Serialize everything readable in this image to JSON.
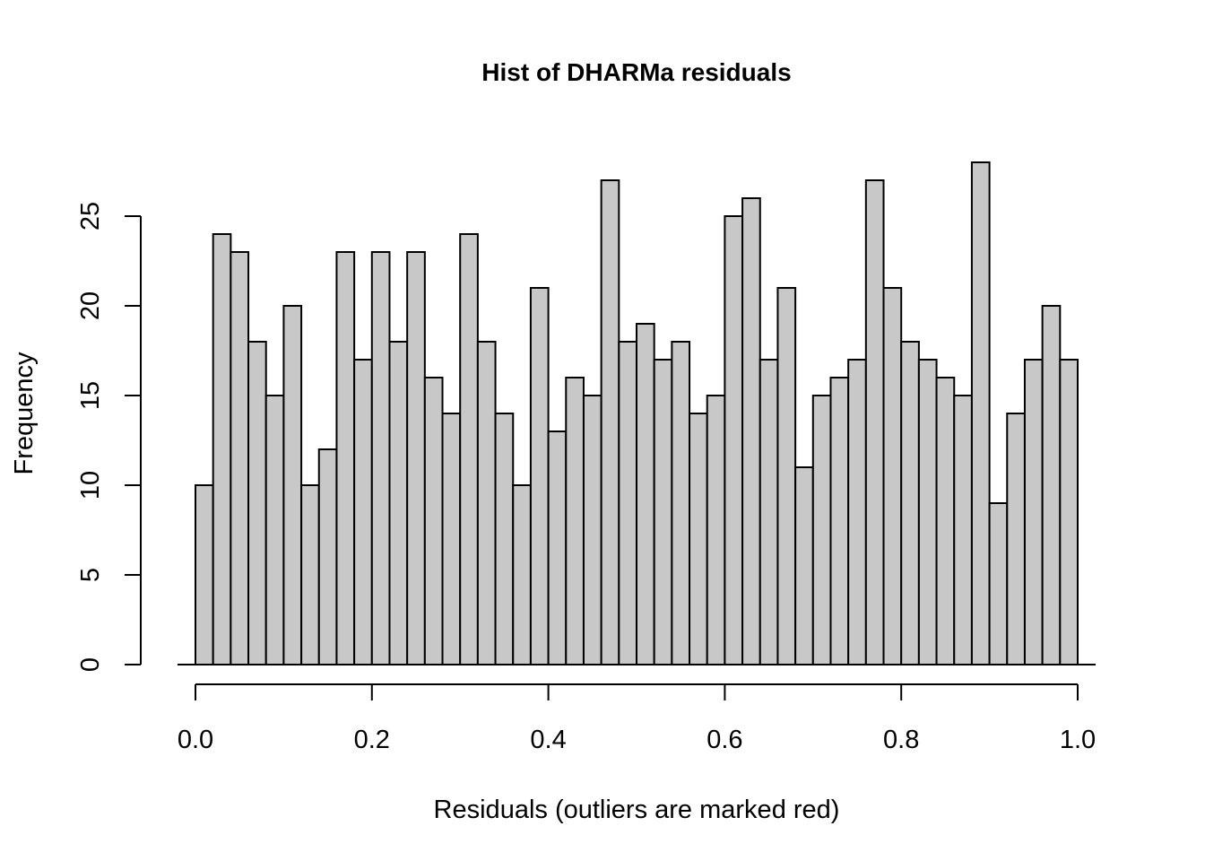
{
  "chart_data": {
    "type": "bar",
    "title": "Hist of DHARMa residuals",
    "xlabel": "Residuals (outliers are marked red)",
    "ylabel": "Frequency",
    "xlim": [
      0,
      1
    ],
    "ylim": [
      0,
      28
    ],
    "bin_width": 0.02,
    "x_ticks": [
      {
        "value": 0.0,
        "label": "0.0"
      },
      {
        "value": 0.2,
        "label": "0.2"
      },
      {
        "value": 0.4,
        "label": "0.4"
      },
      {
        "value": 0.6,
        "label": "0.6"
      },
      {
        "value": 0.8,
        "label": "0.8"
      },
      {
        "value": 1.0,
        "label": "1.0"
      }
    ],
    "y_ticks": [
      {
        "value": 0,
        "label": "0"
      },
      {
        "value": 5,
        "label": "5"
      },
      {
        "value": 10,
        "label": "10"
      },
      {
        "value": 15,
        "label": "15"
      },
      {
        "value": 20,
        "label": "20"
      },
      {
        "value": 25,
        "label": "25"
      }
    ],
    "values": [
      10,
      24,
      23,
      18,
      15,
      20,
      10,
      12,
      23,
      17,
      23,
      18,
      23,
      16,
      14,
      24,
      18,
      14,
      10,
      21,
      13,
      16,
      15,
      27,
      18,
      19,
      17,
      18,
      14,
      15,
      25,
      26,
      17,
      21,
      11,
      15,
      16,
      17,
      27,
      21,
      18,
      17,
      16,
      15,
      28,
      9,
      14,
      17,
      20,
      17
    ],
    "bar_color": "#c8c8c8",
    "grid": false
  }
}
